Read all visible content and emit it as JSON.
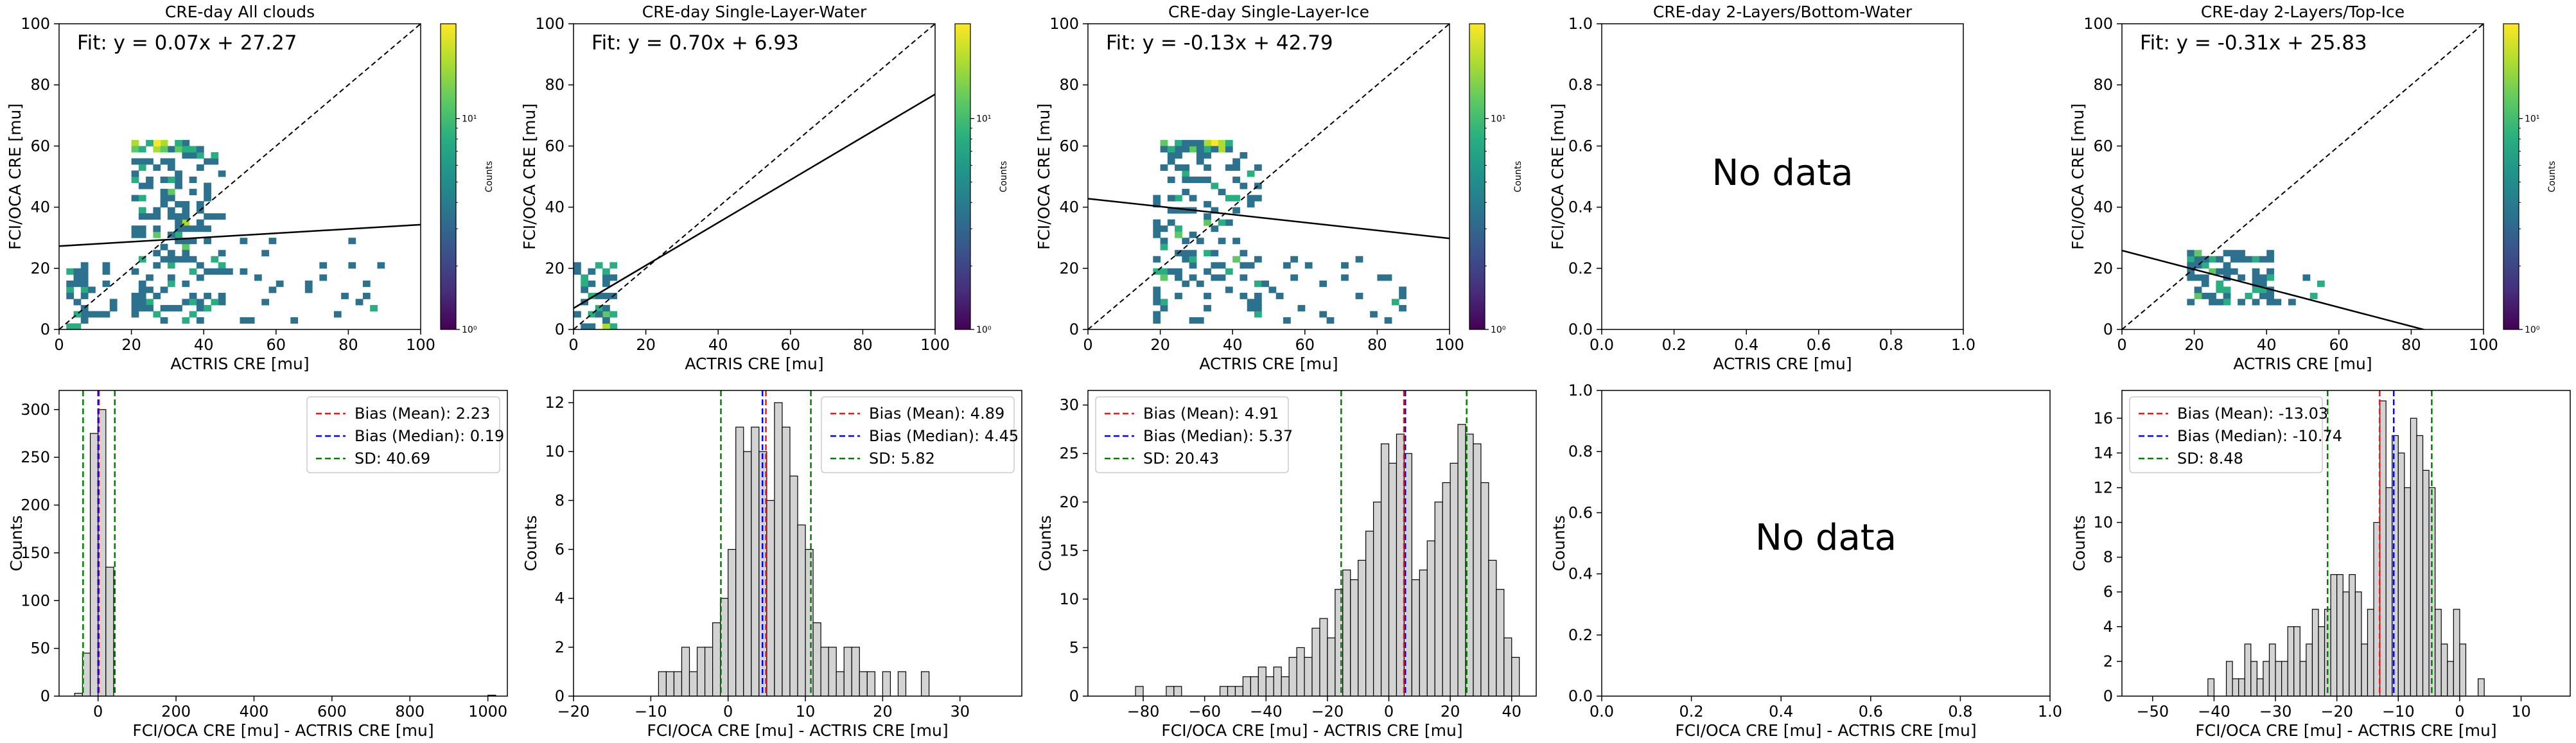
{
  "colors": {
    "viridis": [
      "#440154",
      "#472d7b",
      "#3b528b",
      "#2c728e",
      "#21918c",
      "#28ae80",
      "#5ec962",
      "#addc30",
      "#fde725"
    ],
    "hist_fill": "#d3d3d3",
    "hist_edge": "#000000",
    "mean_line": "#e41a1c",
    "median_line": "#0000ff",
    "sd_line": "#008000"
  },
  "colorbar": {
    "label": "Counts",
    "tick_labels": [
      "10⁰",
      "10¹"
    ]
  },
  "chart_data": [
    {
      "type": "heatmap",
      "title": "CRE-day All clouds",
      "xlabel": "ACTRIS CRE [mu]",
      "ylabel": "FCI/OCA CRE [mu]",
      "xlim": [
        0,
        100
      ],
      "ylim": [
        0,
        100
      ],
      "xticks": [
        0,
        20,
        40,
        60,
        80,
        100
      ],
      "yticks": [
        0,
        20,
        40,
        60,
        80,
        100
      ],
      "xtick_labels": [
        "0",
        "20",
        "40",
        "60",
        "80",
        "100"
      ],
      "ytick_labels": [
        "0",
        "20",
        "40",
        "60",
        "80",
        "100"
      ],
      "fit_label": "Fit: y = 0.07x + 27.27",
      "fit": {
        "slope": 0.07,
        "intercept": 27.27
      },
      "one_to_one_line": true,
      "has_colorbar": true,
      "scatter_cloud": {
        "seed": 11,
        "clusters": [
          {
            "x0": 20,
            "x1": 45,
            "y0": 2,
            "y1": 58,
            "n": 160
          },
          {
            "x0": 20,
            "x1": 40,
            "y0": 58,
            "y1": 62,
            "n": 40
          },
          {
            "x0": 2,
            "x1": 16,
            "y0": 0,
            "y1": 22,
            "n": 35
          },
          {
            "x0": 40,
            "x1": 90,
            "y0": 2,
            "y1": 30,
            "n": 30
          }
        ]
      }
    },
    {
      "type": "heatmap",
      "title": "CRE-day Single-Layer-Water",
      "xlabel": "ACTRIS CRE [mu]",
      "ylabel": "FCI/OCA CRE [mu]",
      "xlim": [
        0,
        100
      ],
      "ylim": [
        0,
        100
      ],
      "xticks": [
        0,
        20,
        40,
        60,
        80,
        100
      ],
      "yticks": [
        0,
        20,
        40,
        60,
        80,
        100
      ],
      "xtick_labels": [
        "0",
        "20",
        "40",
        "60",
        "80",
        "100"
      ],
      "ytick_labels": [
        "0",
        "20",
        "40",
        "60",
        "80",
        "100"
      ],
      "fit_label": "Fit: y = 0.70x + 6.93",
      "fit": {
        "slope": 0.7,
        "intercept": 6.93
      },
      "one_to_one_line": true,
      "has_colorbar": true,
      "scatter_cloud": {
        "seed": 23,
        "clusters": [
          {
            "x0": 1,
            "x1": 12,
            "y0": 0,
            "y1": 22,
            "n": 45
          }
        ]
      }
    },
    {
      "type": "heatmap",
      "title": "CRE-day Single-Layer-Ice",
      "xlabel": "ACTRIS CRE [mu]",
      "ylabel": "FCI/OCA CRE [mu]",
      "xlim": [
        0,
        100
      ],
      "ylim": [
        0,
        100
      ],
      "xticks": [
        0,
        20,
        40,
        60,
        80,
        100
      ],
      "yticks": [
        0,
        20,
        40,
        60,
        80,
        100
      ],
      "xtick_labels": [
        "0",
        "20",
        "40",
        "60",
        "80",
        "100"
      ],
      "ytick_labels": [
        "0",
        "20",
        "40",
        "60",
        "80",
        "100"
      ],
      "fit_label": "Fit: y = -0.13x + 42.79",
      "fit": {
        "slope": -0.13,
        "intercept": 42.79
      },
      "one_to_one_line": true,
      "has_colorbar": true,
      "scatter_cloud": {
        "seed": 37,
        "clusters": [
          {
            "x0": 18,
            "x1": 48,
            "y0": 2,
            "y1": 58,
            "n": 140
          },
          {
            "x0": 20,
            "x1": 40,
            "y0": 58,
            "y1": 62,
            "n": 40
          },
          {
            "x0": 45,
            "x1": 88,
            "y0": 2,
            "y1": 25,
            "n": 25
          }
        ]
      }
    },
    {
      "type": "heatmap",
      "title": "CRE-day 2-Layers/Bottom-Water",
      "xlabel": "ACTRIS CRE [mu]",
      "ylabel": "FCI/OCA CRE [mu]",
      "xlim": [
        0,
        1
      ],
      "ylim": [
        0,
        1
      ],
      "xticks": [
        0,
        0.2,
        0.4,
        0.6,
        0.8,
        1.0
      ],
      "yticks": [
        0,
        0.2,
        0.4,
        0.6,
        0.8,
        1.0
      ],
      "xtick_labels": [
        "0.0",
        "0.2",
        "0.4",
        "0.6",
        "0.8",
        "1.0"
      ],
      "ytick_labels": [
        "0.0",
        "0.2",
        "0.4",
        "0.6",
        "0.8",
        "1.0"
      ],
      "no_data_label": "No data",
      "one_to_one_line": false,
      "has_colorbar": false
    },
    {
      "type": "heatmap",
      "title": "CRE-day 2-Layers/Top-Ice",
      "xlabel": "ACTRIS CRE [mu]",
      "ylabel": "FCI/OCA CRE [mu]",
      "xlim": [
        0,
        100
      ],
      "ylim": [
        0,
        100
      ],
      "xticks": [
        0,
        20,
        40,
        60,
        80,
        100
      ],
      "yticks": [
        0,
        20,
        40,
        60,
        80,
        100
      ],
      "xtick_labels": [
        "0",
        "20",
        "40",
        "60",
        "80",
        "100"
      ],
      "ytick_labels": [
        "0",
        "20",
        "40",
        "60",
        "80",
        "100"
      ],
      "fit_label": "Fit: y = -0.31x + 25.83",
      "fit": {
        "slope": -0.31,
        "intercept": 25.83
      },
      "one_to_one_line": true,
      "has_colorbar": true,
      "scatter_cloud": {
        "seed": 53,
        "clusters": [
          {
            "x0": 18,
            "x1": 42,
            "y0": 8,
            "y1": 26,
            "n": 70
          },
          {
            "x0": 35,
            "x1": 55,
            "y0": 8,
            "y1": 18,
            "n": 15
          }
        ]
      }
    },
    {
      "type": "bar",
      "subtype": "histogram",
      "xlabel": "FCI/OCA CRE [mu] - ACTRIS CRE [mu]",
      "ylabel": "Counts",
      "xlim": [
        -100,
        1050
      ],
      "ylim": [
        0,
        320
      ],
      "xticks": [
        0,
        200,
        400,
        600,
        800,
        1000
      ],
      "yticks": [
        0,
        50,
        100,
        150,
        200,
        250,
        300
      ],
      "xtick_labels": [
        "0",
        "200",
        "400",
        "600",
        "800",
        "1000"
      ],
      "ytick_labels": [
        "0",
        "50",
        "100",
        "150",
        "200",
        "250",
        "300"
      ],
      "bin_width": 20,
      "bins": [
        [
          -60,
          3
        ],
        [
          -40,
          45
        ],
        [
          -20,
          275
        ],
        [
          0,
          300
        ],
        [
          20,
          135
        ],
        [
          1000,
          1
        ]
      ],
      "mean": 2.23,
      "median": 0.19,
      "sd": 40.69,
      "legend": [
        "Bias (Mean): 2.23",
        "Bias (Median): 0.19",
        "SD: 40.69"
      ],
      "legend_position": "top-right"
    },
    {
      "type": "bar",
      "subtype": "histogram",
      "xlabel": "FCI/OCA CRE [mu] - ACTRIS CRE [mu]",
      "ylabel": "Counts",
      "xlim": [
        -20,
        38
      ],
      "ylim": [
        0,
        12.5
      ],
      "xticks": [
        -20,
        -10,
        0,
        10,
        20,
        30
      ],
      "yticks": [
        0,
        2,
        4,
        6,
        8,
        10,
        12
      ],
      "xtick_labels": [
        "−20",
        "−10",
        "0",
        "10",
        "20",
        "30"
      ],
      "ytick_labels": [
        "0",
        "2",
        "4",
        "6",
        "8",
        "10",
        "12"
      ],
      "bin_width": 1,
      "bins": [
        [
          -9,
          1
        ],
        [
          -8,
          1
        ],
        [
          -7,
          1
        ],
        [
          -6,
          2
        ],
        [
          -5,
          1
        ],
        [
          -4,
          2
        ],
        [
          -3,
          2
        ],
        [
          -2,
          3
        ],
        [
          -1,
          4
        ],
        [
          0,
          6
        ],
        [
          1,
          11
        ],
        [
          2,
          10
        ],
        [
          3,
          11
        ],
        [
          4,
          10
        ],
        [
          5,
          8
        ],
        [
          6,
          12
        ],
        [
          7,
          11
        ],
        [
          8,
          9
        ],
        [
          9,
          7
        ],
        [
          10,
          6
        ],
        [
          11,
          3
        ],
        [
          12,
          2
        ],
        [
          13,
          2
        ],
        [
          14,
          1
        ],
        [
          15,
          2
        ],
        [
          16,
          2
        ],
        [
          17,
          1
        ],
        [
          18,
          1
        ],
        [
          20,
          1
        ],
        [
          22,
          1
        ],
        [
          25,
          1
        ]
      ],
      "mean": 4.89,
      "median": 4.45,
      "sd": 5.82,
      "legend": [
        "Bias (Mean): 4.89",
        "Bias (Median): 4.45",
        "SD: 5.82"
      ],
      "legend_position": "top-right"
    },
    {
      "type": "bar",
      "subtype": "histogram",
      "xlabel": "FCI/OCA CRE [mu] - ACTRIS CRE [mu]",
      "ylabel": "Counts",
      "xlim": [
        -98,
        48
      ],
      "ylim": [
        0,
        31.5
      ],
      "xticks": [
        -80,
        -60,
        -40,
        -20,
        0,
        20,
        40
      ],
      "yticks": [
        0,
        5,
        10,
        15,
        20,
        25,
        30
      ],
      "xtick_labels": [
        "−80",
        "−60",
        "−40",
        "−20",
        "0",
        "20",
        "40"
      ],
      "ytick_labels": [
        "0",
        "5",
        "10",
        "15",
        "20",
        "25",
        "30"
      ],
      "bin_width": 2.5,
      "bins": [
        [
          -82.5,
          1
        ],
        [
          -72.5,
          1
        ],
        [
          -70,
          1
        ],
        [
          -55,
          1
        ],
        [
          -52.5,
          1
        ],
        [
          -50,
          1
        ],
        [
          -47.5,
          2
        ],
        [
          -45,
          2
        ],
        [
          -42.5,
          3
        ],
        [
          -40,
          2
        ],
        [
          -37.5,
          3
        ],
        [
          -35,
          2
        ],
        [
          -32.5,
          4
        ],
        [
          -30,
          5
        ],
        [
          -27.5,
          4
        ],
        [
          -25,
          7
        ],
        [
          -22.5,
          8
        ],
        [
          -20,
          6
        ],
        [
          -17.5,
          11
        ],
        [
          -15,
          13
        ],
        [
          -12.5,
          12
        ],
        [
          -10,
          14
        ],
        [
          -7.5,
          17
        ],
        [
          -5,
          20
        ],
        [
          -2.5,
          26
        ],
        [
          0,
          24
        ],
        [
          2.5,
          27
        ],
        [
          5,
          25
        ],
        [
          7.5,
          12
        ],
        [
          10,
          13
        ],
        [
          12.5,
          16
        ],
        [
          15,
          20
        ],
        [
          17.5,
          22
        ],
        [
          20,
          24
        ],
        [
          22.5,
          28
        ],
        [
          25,
          27
        ],
        [
          27.5,
          26
        ],
        [
          30,
          22
        ],
        [
          32.5,
          14
        ],
        [
          35,
          11
        ],
        [
          37.5,
          6
        ],
        [
          40,
          4
        ]
      ],
      "mean": 4.91,
      "median": 5.37,
      "sd": 20.43,
      "legend": [
        "Bias (Mean): 4.91",
        "Bias (Median): 5.37",
        "SD: 20.43"
      ],
      "legend_position": "top-left"
    },
    {
      "type": "bar",
      "subtype": "histogram",
      "xlabel": "FCI/OCA CRE [mu] - ACTRIS CRE [mu]",
      "ylabel": "Counts",
      "xlim": [
        0,
        1
      ],
      "ylim": [
        0,
        1
      ],
      "xticks": [
        0,
        0.2,
        0.4,
        0.6,
        0.8,
        1.0
      ],
      "yticks": [
        0,
        0.2,
        0.4,
        0.6,
        0.8,
        1.0
      ],
      "xtick_labels": [
        "0.0",
        "0.2",
        "0.4",
        "0.6",
        "0.8",
        "1.0"
      ],
      "ytick_labels": [
        "0.0",
        "0.2",
        "0.4",
        "0.6",
        "0.8",
        "1.0"
      ],
      "no_data_label": "No data"
    },
    {
      "type": "bar",
      "subtype": "histogram",
      "xlabel": "FCI/OCA CRE [mu] - ACTRIS CRE [mu]",
      "ylabel": "Counts",
      "xlim": [
        -55,
        18
      ],
      "ylim": [
        0,
        17.6
      ],
      "xticks": [
        -50,
        -40,
        -30,
        -20,
        -10,
        0,
        10
      ],
      "yticks": [
        0,
        2,
        4,
        6,
        8,
        10,
        12,
        14,
        16
      ],
      "xtick_labels": [
        "−50",
        "−40",
        "−30",
        "−20",
        "−10",
        "0",
        "10"
      ],
      "ytick_labels": [
        "0",
        "2",
        "4",
        "6",
        "8",
        "10",
        "12",
        "14",
        "16"
      ],
      "bin_width": 1,
      "bins": [
        [
          -41,
          1
        ],
        [
          -38,
          2
        ],
        [
          -37,
          1
        ],
        [
          -36,
          1
        ],
        [
          -35,
          3
        ],
        [
          -34,
          2
        ],
        [
          -33,
          1
        ],
        [
          -32,
          2
        ],
        [
          -31,
          3
        ],
        [
          -30,
          2
        ],
        [
          -29,
          2
        ],
        [
          -28,
          4
        ],
        [
          -27,
          4
        ],
        [
          -26,
          2
        ],
        [
          -25,
          3
        ],
        [
          -24,
          5
        ],
        [
          -23,
          4
        ],
        [
          -22,
          5
        ],
        [
          -21,
          7
        ],
        [
          -20,
          7
        ],
        [
          -19,
          6
        ],
        [
          -18,
          7
        ],
        [
          -17,
          6
        ],
        [
          -16,
          3
        ],
        [
          -15,
          5
        ],
        [
          -14,
          10
        ],
        [
          -13,
          17
        ],
        [
          -12,
          12
        ],
        [
          -11,
          15
        ],
        [
          -10,
          14
        ],
        [
          -9,
          12
        ],
        [
          -8,
          16
        ],
        [
          -7,
          15
        ],
        [
          -6,
          13
        ],
        [
          -5,
          12
        ],
        [
          -4,
          5
        ],
        [
          -3,
          3
        ],
        [
          -2,
          2
        ],
        [
          -1,
          5
        ],
        [
          0,
          3
        ],
        [
          3,
          1
        ]
      ],
      "mean": -13.03,
      "median": -10.74,
      "sd": 8.48,
      "legend": [
        "Bias (Mean): -13.03",
        "Bias (Median): -10.74",
        "SD: 8.48"
      ],
      "legend_position": "top-left"
    }
  ]
}
